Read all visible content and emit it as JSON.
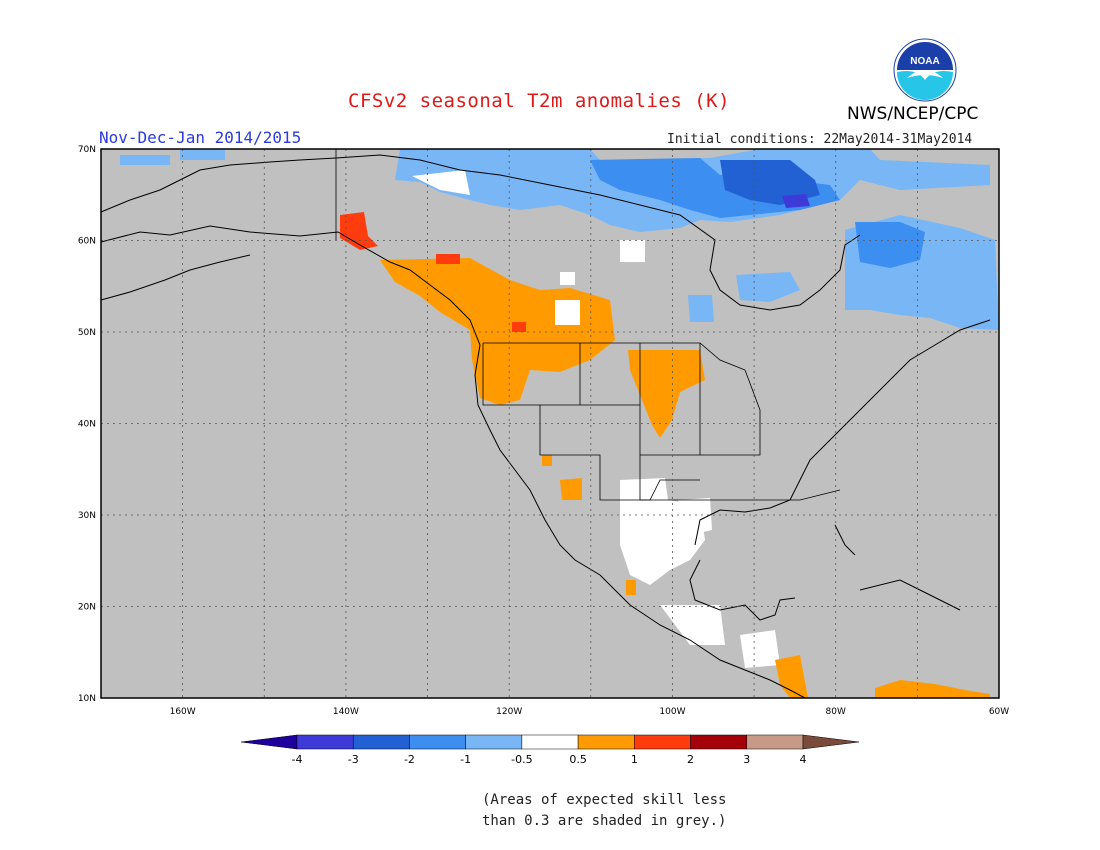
{
  "header": {
    "title": "CFSv2 seasonal T2m anomalies (K)",
    "period": "Nov-Dec-Jan 2014/2015",
    "initial_conditions": "Initial conditions: 22May2014-31May2014",
    "agency": "NWS/NCEP/CPC",
    "logo_text": "NOAA"
  },
  "map": {
    "region": "North America",
    "lon_range": [
      -170,
      -60
    ],
    "lat_range": [
      10,
      70
    ],
    "lat_labels": [
      "70N",
      "60N",
      "50N",
      "40N",
      "30N",
      "20N",
      "10N"
    ],
    "lon_labels": [
      "160W",
      "140W",
      "120W",
      "100W",
      "80W",
      "60W"
    ],
    "grid": "dotted"
  },
  "legend": {
    "labels": [
      "-4",
      "-3",
      "-2",
      "-1",
      "-0.5",
      "0.5",
      "1",
      "2",
      "3",
      "4"
    ],
    "colors": [
      "#1d009e",
      "#3e3ad8",
      "#2161d4",
      "#3c8ef0",
      "#78b6f6",
      "#ffffff",
      "#ff9b00",
      "#ff3c0e",
      "#a4000a",
      "#c79a88",
      "#7a4a3a"
    ]
  },
  "footnote": {
    "line1": "(Areas of expected skill less",
    "line2": "than 0.3 are shaded in grey.)"
  }
}
